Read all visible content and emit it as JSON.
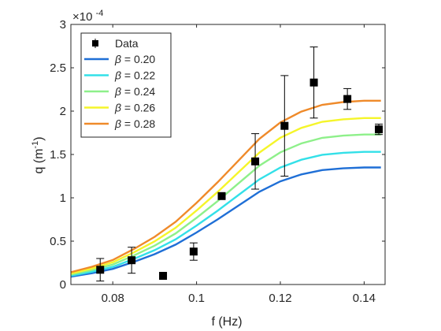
{
  "chart_data": {
    "type": "scatter",
    "xlabel": "f (Hz)",
    "ylabel_main": "q (m",
    "ylabel_exp": "-1",
    "ylabel_close": ")",
    "y_multiplier_base": "×10",
    "y_multiplier_exp": "-4",
    "xlim": [
      0.07,
      0.145
    ],
    "ylim": [
      0,
      3
    ],
    "x_ticks": [
      0.08,
      0.1,
      0.12,
      0.14
    ],
    "x_tick_labels": [
      "0.08",
      "0.1",
      "0.12",
      "0.14"
    ],
    "y_ticks": [
      0,
      0.5,
      1,
      1.5,
      2,
      2.5,
      3
    ],
    "y_tick_labels": [
      "0",
      "0.5",
      "1",
      "1.5",
      "2",
      "2.5",
      "3"
    ],
    "grid": false,
    "legend_position": "top-left",
    "data_series": {
      "name": "Data",
      "color": "#000000",
      "points": [
        {
          "x": 0.077,
          "y": 0.17,
          "err_low": 0.13,
          "err_high": 0.13
        },
        {
          "x": 0.0845,
          "y": 0.28,
          "err_low": 0.15,
          "err_high": 0.15
        },
        {
          "x": 0.092,
          "y": 0.1,
          "err_low": 0,
          "err_high": 0
        },
        {
          "x": 0.0993,
          "y": 0.38,
          "err_low": 0.1,
          "err_high": 0.1
        },
        {
          "x": 0.106,
          "y": 1.02,
          "err_low": 0,
          "err_high": 0
        },
        {
          "x": 0.114,
          "y": 1.42,
          "err_low": 0.32,
          "err_high": 0.32
        },
        {
          "x": 0.121,
          "y": 1.83,
          "err_low": 0.58,
          "err_high": 0.58
        },
        {
          "x": 0.128,
          "y": 2.33,
          "err_low": 0.41,
          "err_high": 0.41
        },
        {
          "x": 0.136,
          "y": 2.14,
          "err_low": 0.12,
          "err_high": 0.12
        },
        {
          "x": 0.1435,
          "y": 1.79,
          "err_low": 0.06,
          "err_high": 0.06
        }
      ]
    },
    "curves": [
      {
        "name": "β = 0.20",
        "greek": "β",
        "value_text": " = 0.20",
        "color": "#1f6fd6",
        "peak": 1.35
      },
      {
        "name": "β = 0.22",
        "greek": "β",
        "value_text": " = 0.22",
        "color": "#33e0e8",
        "peak": 1.53
      },
      {
        "name": "β = 0.24",
        "greek": "β",
        "value_text": " = 0.24",
        "color": "#8ef08a",
        "peak": 1.73
      },
      {
        "name": "β = 0.26",
        "greek": "β",
        "value_text": " = 0.26",
        "color": "#f5f52a",
        "peak": 1.92
      },
      {
        "name": "β = 0.28",
        "greek": "β",
        "value_text": " = 0.28",
        "color": "#ef8a2a",
        "peak": 2.12
      }
    ]
  }
}
